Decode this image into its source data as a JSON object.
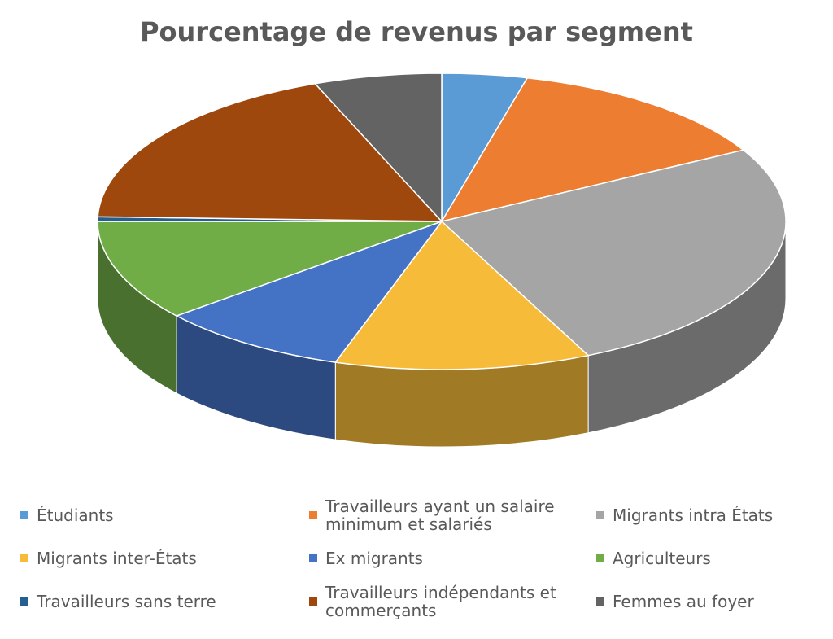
{
  "chart_data": {
    "type": "pie",
    "title": "Pourcentage de revenus par segment",
    "categories": [
      "Étudiants",
      "Travailleurs ayant un salaire minimum et salariés",
      "Migrants intra États",
      "Migrants inter-États",
      "Ex migrants",
      "Agriculteurs",
      "Travailleurs sans terre",
      "Travailleurs indépendants et commerçants",
      "Femmes au foyer"
    ],
    "values": [
      4,
      13,
      26,
      12,
      9,
      11,
      0.5,
      18.5,
      6
    ],
    "colors": [
      "#5b9bd5",
      "#ed7d31",
      "#a5a5a5",
      "#f7bb3a",
      "#4472c4",
      "#70ad47",
      "#255e91",
      "#9e480e",
      "#636363"
    ],
    "legend": "bottom"
  }
}
